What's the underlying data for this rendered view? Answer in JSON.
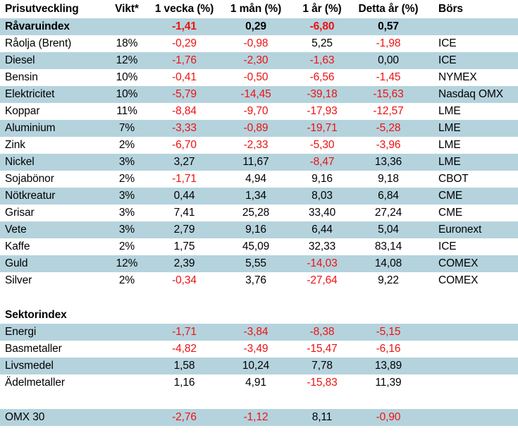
{
  "colors": {
    "row_highlight": "#b5d3dd",
    "negative": "#ee1111",
    "text": "#000000",
    "background": "#ffffff"
  },
  "table": {
    "headers": [
      "Prisutveckling",
      "Vikt*",
      "1 vecka (%)",
      "1 mån (%)",
      "1 år (%)",
      "Detta år (%)",
      "Börs"
    ],
    "rows": [
      {
        "type": "data",
        "name": "Råvaruindex",
        "vikt": "",
        "w1": "-1,41",
        "m1": "0,29",
        "y1": "-6,80",
        "ytd": "0,57",
        "bors": "",
        "shaded": true,
        "bold": true
      },
      {
        "type": "data",
        "name": "Råolja (Brent)",
        "vikt": "18%",
        "w1": "-0,29",
        "m1": "-0,98",
        "y1": "5,25",
        "ytd": "-1,98",
        "bors": "ICE",
        "shaded": false,
        "bold": false
      },
      {
        "type": "data",
        "name": "Diesel",
        "vikt": "12%",
        "w1": "-1,76",
        "m1": "-2,30",
        "y1": "-1,63",
        "ytd": "0,00",
        "bors": "ICE",
        "shaded": true,
        "bold": false
      },
      {
        "type": "data",
        "name": "Bensin",
        "vikt": "10%",
        "w1": "-0,41",
        "m1": "-0,50",
        "y1": "-6,56",
        "ytd": "-1,45",
        "bors": "NYMEX",
        "shaded": false,
        "bold": false
      },
      {
        "type": "data",
        "name": "Elektricitet",
        "vikt": "10%",
        "w1": "-5,79",
        "m1": "-14,45",
        "y1": "-39,18",
        "ytd": "-15,63",
        "bors": "Nasdaq OMX",
        "shaded": true,
        "bold": false
      },
      {
        "type": "data",
        "name": "Koppar",
        "vikt": "11%",
        "w1": "-8,84",
        "m1": "-9,70",
        "y1": "-17,93",
        "ytd": "-12,57",
        "bors": "LME",
        "shaded": false,
        "bold": false
      },
      {
        "type": "data",
        "name": "Aluminium",
        "vikt": "7%",
        "w1": "-3,33",
        "m1": "-0,89",
        "y1": "-19,71",
        "ytd": "-5,28",
        "bors": "LME",
        "shaded": true,
        "bold": false
      },
      {
        "type": "data",
        "name": "Zink",
        "vikt": "2%",
        "w1": "-6,70",
        "m1": "-2,33",
        "y1": "-5,30",
        "ytd": "-3,96",
        "bors": "LME",
        "shaded": false,
        "bold": false
      },
      {
        "type": "data",
        "name": "Nickel",
        "vikt": "3%",
        "w1": "3,27",
        "m1": "11,67",
        "y1": "-8,47",
        "ytd": "13,36",
        "bors": "LME",
        "shaded": true,
        "bold": false
      },
      {
        "type": "data",
        "name": "Sojabönor",
        "vikt": "2%",
        "w1": "-1,71",
        "m1": "4,94",
        "y1": "9,16",
        "ytd": "9,18",
        "bors": "CBOT",
        "shaded": false,
        "bold": false
      },
      {
        "type": "data",
        "name": "Nötkreatur",
        "vikt": "3%",
        "w1": "0,44",
        "m1": "1,34",
        "y1": "8,03",
        "ytd": "6,84",
        "bors": "CME",
        "shaded": true,
        "bold": false
      },
      {
        "type": "data",
        "name": "Grisar",
        "vikt": "3%",
        "w1": "7,41",
        "m1": "25,28",
        "y1": "33,40",
        "ytd": "27,24",
        "bors": "CME",
        "shaded": false,
        "bold": false
      },
      {
        "type": "data",
        "name": "Vete",
        "vikt": "3%",
        "w1": "2,79",
        "m1": "9,16",
        "y1": "6,44",
        "ytd": "5,04",
        "bors": "Euronext",
        "shaded": true,
        "bold": false
      },
      {
        "type": "data",
        "name": "Kaffe",
        "vikt": "2%",
        "w1": "1,75",
        "m1": "45,09",
        "y1": "32,33",
        "ytd": "83,14",
        "bors": "ICE",
        "shaded": false,
        "bold": false
      },
      {
        "type": "data",
        "name": "Guld",
        "vikt": "12%",
        "w1": "2,39",
        "m1": "5,55",
        "y1": "-14,03",
        "ytd": "14,08",
        "bors": "COMEX",
        "shaded": true,
        "bold": false
      },
      {
        "type": "data",
        "name": "Silver",
        "vikt": "2%",
        "w1": "-0,34",
        "m1": "3,76",
        "y1": "-27,64",
        "ytd": "9,22",
        "bors": "COMEX",
        "shaded": false,
        "bold": false
      },
      {
        "type": "spacer"
      },
      {
        "type": "data",
        "name": "Sektorindex",
        "vikt": "",
        "w1": "",
        "m1": "",
        "y1": "",
        "ytd": "",
        "bors": "",
        "shaded": false,
        "bold": true
      },
      {
        "type": "data",
        "name": "Energi",
        "vikt": "",
        "w1": "-1,71",
        "m1": "-3,84",
        "y1": "-8,38",
        "ytd": "-5,15",
        "bors": "",
        "shaded": true,
        "bold": false
      },
      {
        "type": "data",
        "name": "Basmetaller",
        "vikt": "",
        "w1": "-4,82",
        "m1": "-3,49",
        "y1": "-15,47",
        "ytd": "-6,16",
        "bors": "",
        "shaded": false,
        "bold": false
      },
      {
        "type": "data",
        "name": "Livsmedel",
        "vikt": "",
        "w1": "1,58",
        "m1": "10,24",
        "y1": "7,78",
        "ytd": "13,89",
        "bors": "",
        "shaded": true,
        "bold": false
      },
      {
        "type": "data",
        "name": "Ädelmetaller",
        "vikt": "",
        "w1": "1,16",
        "m1": "4,91",
        "y1": "-15,83",
        "ytd": "11,39",
        "bors": "",
        "shaded": false,
        "bold": false
      },
      {
        "type": "spacer"
      },
      {
        "type": "data",
        "name": "OMX 30",
        "vikt": "",
        "w1": "-2,76",
        "m1": "-1,12",
        "y1": "8,11",
        "ytd": "-0,90",
        "bors": "",
        "shaded": true,
        "bold": false
      }
    ]
  }
}
